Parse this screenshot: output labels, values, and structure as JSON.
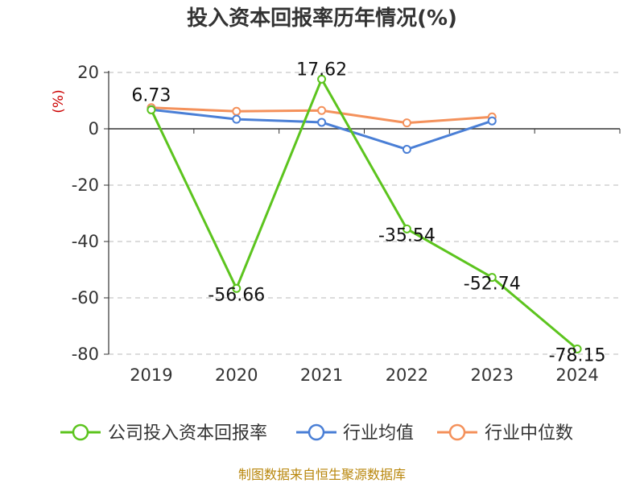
{
  "chart_data": {
    "type": "line",
    "title": "投入资本回报率历年情况(%)",
    "ylabel": "(%)",
    "categories": [
      "2019",
      "2020",
      "2021",
      "2022",
      "2023",
      "2024"
    ],
    "ylim": [
      -80,
      20
    ],
    "yticks": [
      20,
      0,
      -20,
      -40,
      -60,
      -80
    ],
    "grid": true,
    "legend_position": "bottom",
    "series": [
      {
        "name": "公司投入资本回报率",
        "color": "#5cc41e",
        "values": [
          6.73,
          -56.66,
          17.62,
          -35.54,
          -52.74,
          -78.15
        ],
        "labels": [
          "6.73",
          "-56.66",
          "17.62",
          "-35.54",
          "-52.74",
          "-78.15"
        ]
      },
      {
        "name": "行业均值",
        "color": "#4a7fd6",
        "values": [
          6.8,
          3.4,
          2.3,
          -7.3,
          2.8,
          null
        ]
      },
      {
        "name": "行业中位数",
        "color": "#f4915b",
        "values": [
          7.5,
          6.2,
          6.5,
          2.1,
          4.2,
          null
        ]
      }
    ],
    "source": "制图数据来自恒生聚源数据库"
  }
}
